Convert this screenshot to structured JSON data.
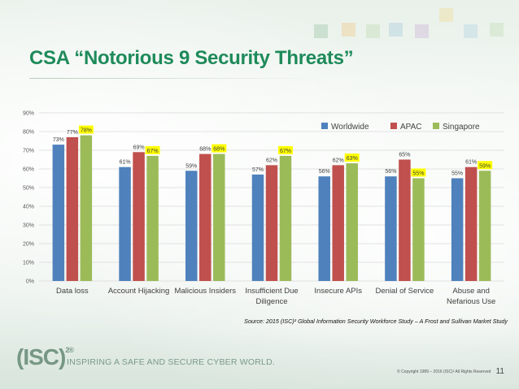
{
  "slide": {
    "title": "CSA “Notorious 9 Security Threats”",
    "source": "Source: 2015 (ISC)² Global Information Security Workforce Study – A Frost and Sullivan Market Study",
    "logo_text": "(ISC)",
    "logo_sup": "2®",
    "tagline": "INSPIRING A SAFE AND SECURE CYBER WORLD.",
    "copyright": "© Copyright 1989 – 2016 (ISC)² All Rights Reserved",
    "page_number": "11"
  },
  "colors": {
    "Worldwide": "#4f81bd",
    "APAC": "#c0504d",
    "Singapore": "#9bbb59",
    "highlight": "#ffff00",
    "title": "#1e8a5a"
  },
  "chart_data": {
    "type": "bar",
    "categories": [
      [
        "Data loss"
      ],
      [
        "Account Hijacking"
      ],
      [
        "Malicious Insiders"
      ],
      [
        "Insufficient Due",
        "Diligence"
      ],
      [
        "Insecure APIs"
      ],
      [
        "Denial of Service"
      ],
      [
        "Abuse and",
        "Nefarious Use"
      ]
    ],
    "series": [
      {
        "name": "Worldwide",
        "values": [
          73,
          61,
          59,
          57,
          56,
          56,
          55
        ],
        "labels": [
          "73%",
          "61%",
          "59%",
          "57%",
          "56%",
          "56%",
          "55%"
        ]
      },
      {
        "name": "APAC",
        "values": [
          77,
          69,
          68,
          62,
          62,
          65,
          61
        ],
        "labels": [
          "77%",
          "69%",
          "68%",
          "62%",
          "62%",
          "65%",
          "61%"
        ]
      },
      {
        "name": "Singapore",
        "values": [
          78,
          67,
          68,
          67,
          63,
          55,
          59
        ],
        "labels": [
          "78%",
          "67%",
          "68%",
          "67%",
          "63%",
          "55%",
          "59%"
        ]
      }
    ],
    "ylim": [
      0,
      90
    ],
    "yticks": [
      "0%",
      "10%",
      "20%",
      "30%",
      "40%",
      "50%",
      "60%",
      "70%",
      "80%",
      "90%"
    ],
    "legend_position": "top-right",
    "grid": true,
    "highlighted_series": "Singapore"
  }
}
